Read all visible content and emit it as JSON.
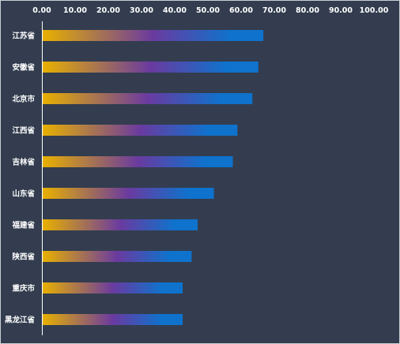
{
  "chart_data": {
    "type": "bar",
    "orientation": "horizontal",
    "categories": [
      "江苏省",
      "安徽省",
      "北京市",
      "江西省",
      "吉林省",
      "山东省",
      "福建省",
      "陕西省",
      "重庆市",
      "黑龙江省"
    ],
    "values": [
      66.7,
      65.2,
      63.4,
      58.9,
      57.5,
      51.8,
      46.9,
      45.1,
      42.4,
      42.4
    ],
    "x_ticks": [
      "0.00",
      "10.00",
      "20.00",
      "30.00",
      "40.00",
      "50.00",
      "60.00",
      "70.00",
      "80.00",
      "90.00",
      "100.00"
    ],
    "xlim": [
      0,
      100
    ],
    "x_axis_position": "top",
    "grid": false,
    "legend": "none",
    "colors": {
      "background": "#333d4f",
      "gradient_start": "#e8b000",
      "gradient_mid": "#6a3aa0",
      "gradient_end": "#0f72cc",
      "text": "#ffffff",
      "axis": "#ffffff"
    }
  }
}
